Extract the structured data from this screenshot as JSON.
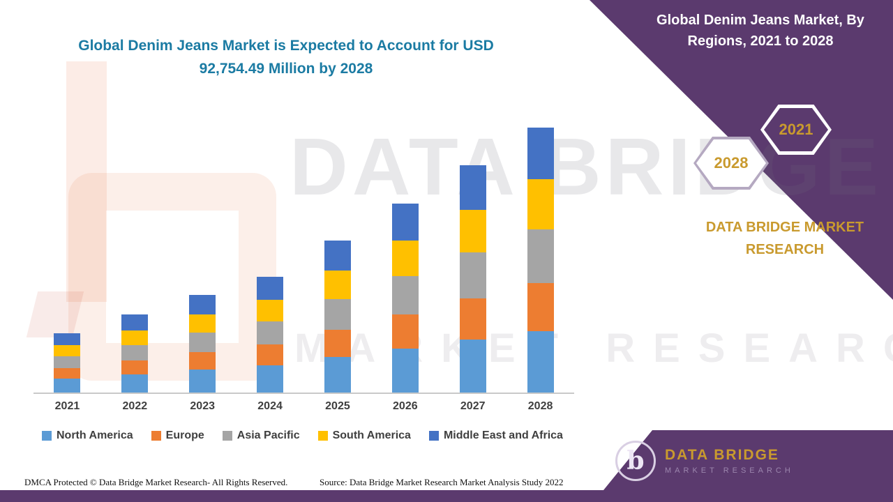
{
  "title": {
    "line1": "Global Denim Jeans Market is Expected to Account for USD",
    "line2": "92,754.49 Million by 2028"
  },
  "side_panel": {
    "title_line1": "Global Denim Jeans Market, By",
    "title_line2": "Regions, 2021 to 2028",
    "hexagons": {
      "left_year": "2028",
      "right_year": "2021"
    },
    "brand_line1": "DATA BRIDGE MARKET",
    "brand_line2": "RESEARCH"
  },
  "watermark": {
    "line1": "DATA BRIDGE",
    "line2": "MARKET RESEARCH"
  },
  "logo": {
    "name": "DATA BRIDGE",
    "subtitle": "MARKET RESEARCH",
    "monogram": "b"
  },
  "footer": {
    "dmca": "DMCA Protected © Data Bridge Market Research- All Rights Reserved.",
    "source": "Source: Data Bridge Market Research Market Analysis Study 2022"
  },
  "colors": {
    "purple": "#5B3A6E",
    "gold": "#C99A2E",
    "title_teal": "#1B7BA3",
    "axis_gray": "#C9C9C9",
    "label_gray": "#3F3F3F"
  },
  "chart_data": {
    "type": "bar",
    "stacked": true,
    "title": "Global Denim Jeans Market is Expected to Account for USD 92,754.49 Million by 2028",
    "unit": "USD Million",
    "categories": [
      "2021",
      "2022",
      "2023",
      "2024",
      "2025",
      "2026",
      "2027",
      "2028"
    ],
    "series": [
      {
        "name": "North America",
        "color": "#5B9BD5",
        "values": [
          4880,
          6350,
          8060,
          9520,
          12450,
          15380,
          18550,
          21480
        ]
      },
      {
        "name": "Europe",
        "color": "#ED7D31",
        "values": [
          3660,
          4880,
          6100,
          7320,
          9520,
          11960,
          14400,
          16840
        ]
      },
      {
        "name": "Asia Pacific",
        "color": "#A5A5A5",
        "values": [
          4150,
          5370,
          6830,
          8060,
          10740,
          13430,
          16110,
          18800
        ]
      },
      {
        "name": "South America",
        "color": "#FFC000",
        "values": [
          3910,
          5130,
          6350,
          7570,
          10010,
          12450,
          14890,
          17570
        ]
      },
      {
        "name": "Middle East and Africa",
        "color": "#4472C4",
        "values": [
          4150,
          5610,
          6830,
          8060,
          10500,
          12940,
          15620,
          18064.49
        ]
      }
    ],
    "totals": [
      20750,
      27340,
      34170,
      40530,
      53220,
      66160,
      79570,
      92754.49
    ],
    "ylim": [
      0,
      95000
    ],
    "grid": false,
    "legend_position": "bottom"
  }
}
